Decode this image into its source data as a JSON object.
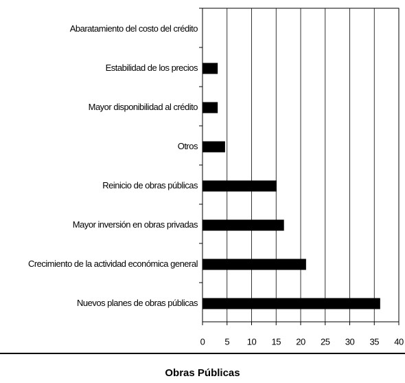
{
  "chart_data": {
    "type": "barh",
    "title": "Obras Públicas",
    "categories": [
      "Abaratamiento del costo del crédito",
      "Estabilidad de los precios",
      "Mayor disponibilidad al crédito",
      "Otros",
      "Reinicio de obras públicas",
      "Mayor inversión en obras privadas",
      "Crecimiento de la actividad económica general",
      "Nuevos planes de obras públicas"
    ],
    "values": [
      0,
      3.1,
      3.1,
      4.6,
      15.1,
      16.6,
      21.1,
      36.2
    ],
    "color": "#000000",
    "xlim": [
      0,
      40
    ],
    "xticks": [
      0,
      5,
      10,
      15,
      20,
      25,
      30,
      35,
      40
    ],
    "grid": true
  }
}
